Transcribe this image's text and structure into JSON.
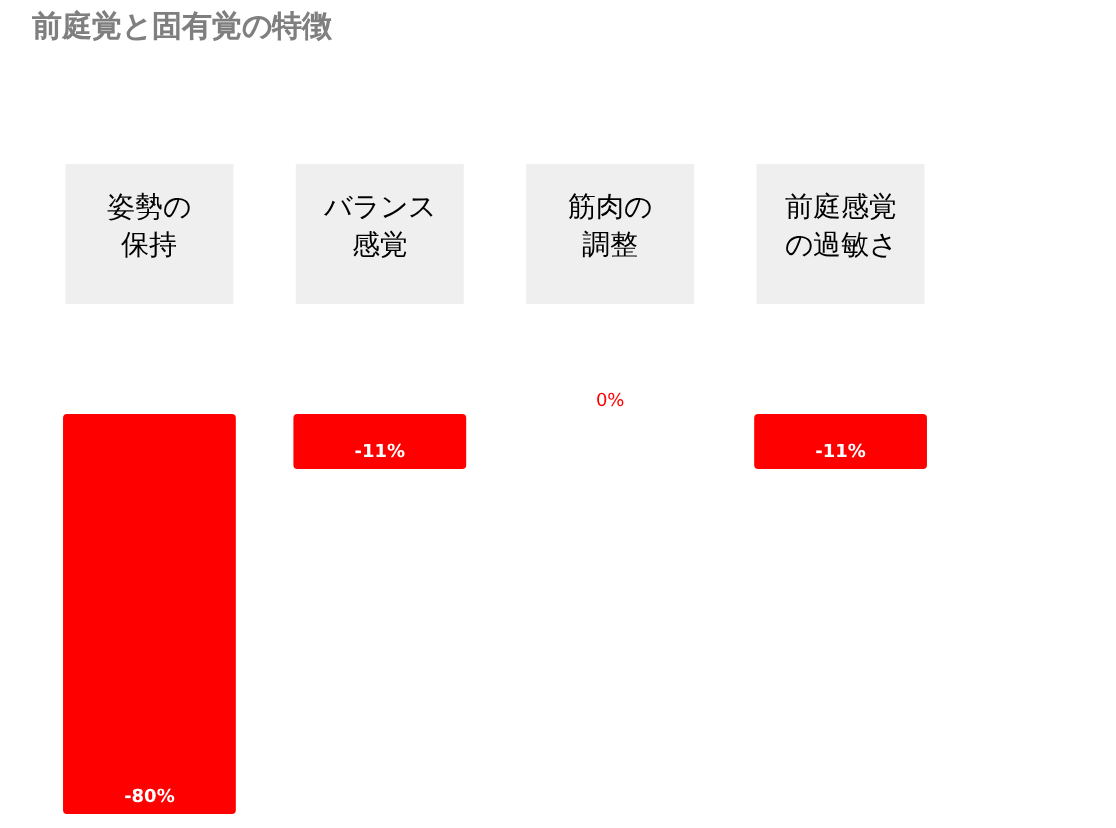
{
  "chart_data": {
    "type": "bar",
    "title": "前庭覚と固有覚の特徴",
    "categories": [
      "姿勢の保持",
      "バランス感覚",
      "筋肉の調整",
      "前庭感覚の過敏さ"
    ],
    "values": [
      -80,
      -11,
      0,
      -11
    ],
    "color": "#ff0000",
    "value_labels": [
      "-80%",
      "-11%",
      "0%",
      "-11%"
    ]
  }
}
